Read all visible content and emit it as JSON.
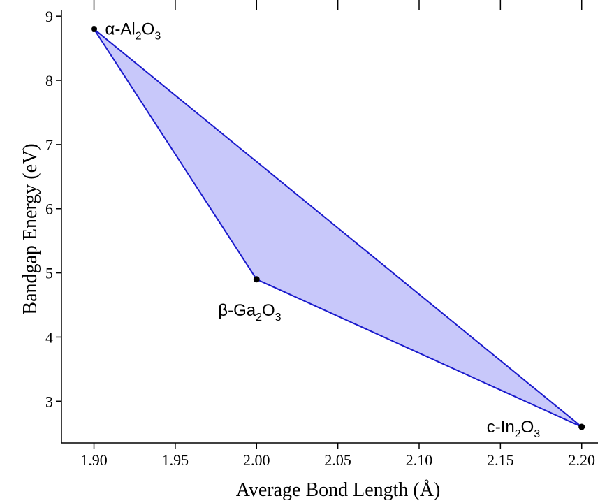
{
  "chart_data": {
    "type": "scatter",
    "xlabel": "Average Bond Length (Å)",
    "ylabel": "Bandgap Energy (eV)",
    "xlim": [
      1.88,
      2.21
    ],
    "ylim": [
      2.35,
      9.1
    ],
    "x_ticks": [
      "1.90",
      "1.95",
      "2.00",
      "2.05",
      "2.10",
      "2.15",
      "2.20"
    ],
    "y_ticks": [
      "3",
      "4",
      "5",
      "6",
      "7",
      "8",
      "9"
    ],
    "grid": false,
    "fill_color": "#c8c8fa",
    "line_color": "#1a1acc",
    "point_color": "#000000",
    "points": [
      {
        "x": 1.9,
        "y": 8.8,
        "label_prefix": "α-Al",
        "sub1": "2",
        "mid": "O",
        "sub2": "3"
      },
      {
        "x": 2.0,
        "y": 4.9,
        "label_prefix": "β-Ga",
        "sub1": "2",
        "mid": "O",
        "sub2": "3"
      },
      {
        "x": 2.2,
        "y": 2.6,
        "label_prefix": "c-In",
        "sub1": "2",
        "mid": "O",
        "sub2": "3"
      }
    ]
  }
}
